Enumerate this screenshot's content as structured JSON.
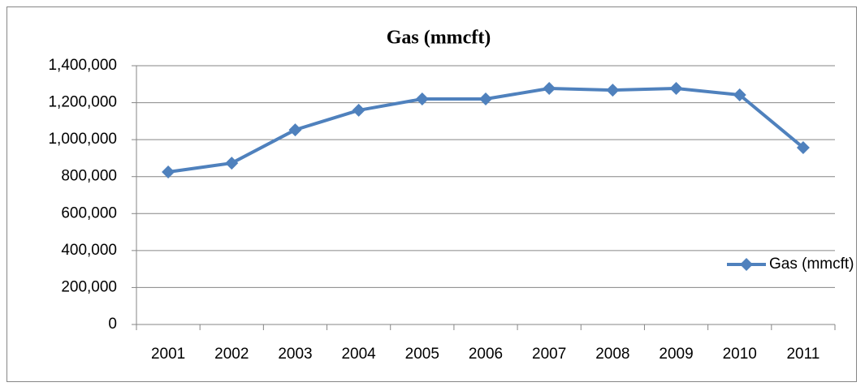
{
  "chart_data": {
    "type": "line",
    "title": "Gas (mmcft)",
    "categories": [
      "2001",
      "2002",
      "2003",
      "2004",
      "2005",
      "2006",
      "2007",
      "2008",
      "2009",
      "2010",
      "2011"
    ],
    "series": [
      {
        "name": "Gas (mmcft)",
        "color": "#4f81bd",
        "values": [
          825000,
          873000,
          1053000,
          1159000,
          1220000,
          1220000,
          1277000,
          1268000,
          1277000,
          1242000,
          957000
        ]
      }
    ],
    "ylim": [
      0,
      1400000
    ],
    "yticks": [
      0,
      {
        "value": 200000,
        "label": "200,000"
      },
      {
        "value": 400000,
        "label": "400,000"
      },
      {
        "value": 600000,
        "label": "600,000"
      },
      {
        "value": 800000,
        "label": "800,000"
      },
      {
        "value": 1000000,
        "label": "1,000,000"
      },
      {
        "value": 1200000,
        "label": "1,200,000"
      },
      {
        "value": 1400000,
        "label": "1,400,000"
      }
    ],
    "grid": true,
    "legend": "right"
  }
}
